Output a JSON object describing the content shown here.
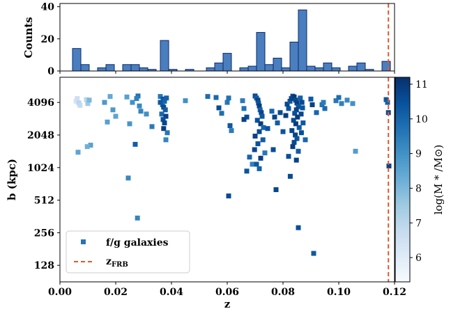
{
  "chart_data": [
    {
      "type": "bar",
      "panel": "histogram",
      "ylabel": "Counts",
      "yticks": [
        0,
        20,
        40
      ],
      "ylim": [
        0,
        42
      ],
      "xlim": [
        0,
        0.12
      ],
      "bin_width": 0.003,
      "bins": [
        {
          "x": 0.006,
          "count": 14
        },
        {
          "x": 0.009,
          "count": 4
        },
        {
          "x": 0.015,
          "count": 2
        },
        {
          "x": 0.018,
          "count": 4
        },
        {
          "x": 0.024,
          "count": 4
        },
        {
          "x": 0.027,
          "count": 4
        },
        {
          "x": 0.03,
          "count": 2
        },
        {
          "x": 0.033,
          "count": 1
        },
        {
          "x": 0.0375,
          "count": 19
        },
        {
          "x": 0.0405,
          "count": 1
        },
        {
          "x": 0.0465,
          "count": 1
        },
        {
          "x": 0.054,
          "count": 2
        },
        {
          "x": 0.057,
          "count": 5
        },
        {
          "x": 0.06,
          "count": 11
        },
        {
          "x": 0.066,
          "count": 2
        },
        {
          "x": 0.069,
          "count": 3
        },
        {
          "x": 0.072,
          "count": 24
        },
        {
          "x": 0.075,
          "count": 4
        },
        {
          "x": 0.078,
          "count": 8
        },
        {
          "x": 0.081,
          "count": 2
        },
        {
          "x": 0.084,
          "count": 18
        },
        {
          "x": 0.087,
          "count": 38
        },
        {
          "x": 0.09,
          "count": 3
        },
        {
          "x": 0.093,
          "count": 2
        },
        {
          "x": 0.096,
          "count": 5
        },
        {
          "x": 0.099,
          "count": 2
        },
        {
          "x": 0.105,
          "count": 3
        },
        {
          "x": 0.108,
          "count": 5
        },
        {
          "x": 0.111,
          "count": 1
        },
        {
          "x": 0.117,
          "count": 6
        }
      ],
      "z_frb": 0.1178,
      "colors": {
        "bar": "#4a7ebf",
        "edge": "#0b2a6b",
        "frb": "#e8562a"
      }
    },
    {
      "type": "scatter",
      "panel": "impact-parameter",
      "xlabel": "z",
      "ylabel": "b (kpc)",
      "xlim": [
        0,
        0.12
      ],
      "xticks": [
        "0.00",
        "0.02",
        "0.04",
        "0.06",
        "0.08",
        "0.10",
        "0.12"
      ],
      "xtick_values": [
        0,
        0.02,
        0.04,
        0.06,
        0.08,
        0.1,
        0.12
      ],
      "yscale": "log2",
      "ylim": [
        90,
        7000
      ],
      "yticks": [
        128,
        256,
        512,
        1024,
        2048,
        4096
      ],
      "colorbar": {
        "label": "log(M * /M⊙)",
        "ticks": [
          6,
          7,
          8,
          9,
          10,
          11
        ],
        "range": [
          5.3,
          11.2
        ]
      },
      "legend": {
        "position": "lower-left",
        "entries": [
          {
            "label": "f/g galaxies",
            "marker": "square"
          },
          {
            "label": "zFRB",
            "marker": "dashed-line"
          }
        ]
      },
      "z_frb": 0.1178,
      "points": [
        [
          0.0058,
          4200,
          6.3
        ],
        [
          0.0062,
          4450,
          6.6
        ],
        [
          0.0068,
          4050,
          7.0
        ],
        [
          0.0072,
          3850,
          6.8
        ],
        [
          0.0065,
          1420,
          8.5
        ],
        [
          0.0095,
          4350,
          7.0
        ],
        [
          0.01,
          4000,
          7.5
        ],
        [
          0.0105,
          4300,
          8.0
        ],
        [
          0.011,
          1650,
          8.6
        ],
        [
          0.0098,
          1600,
          8.2
        ],
        [
          0.018,
          4650,
          8.4
        ],
        [
          0.016,
          4100,
          8.8
        ],
        [
          0.019,
          3500,
          8.8
        ],
        [
          0.02,
          3050,
          8.5
        ],
        [
          0.017,
          2700,
          8.6
        ],
        [
          0.024,
          4600,
          8.6
        ],
        [
          0.025,
          2600,
          8.9
        ],
        [
          0.026,
          4100,
          9.0
        ],
        [
          0.0245,
          820,
          9.2
        ],
        [
          0.028,
          4700,
          9.7
        ],
        [
          0.0275,
          4450,
          9.4
        ],
        [
          0.0285,
          3800,
          9.2
        ],
        [
          0.029,
          3400,
          9.3
        ],
        [
          0.027,
          1680,
          10.2
        ],
        [
          0.0278,
          350,
          9.3
        ],
        [
          0.031,
          3200,
          9.0
        ],
        [
          0.033,
          2450,
          9.5
        ],
        [
          0.036,
          4650,
          9.6
        ],
        [
          0.037,
          4400,
          10.4
        ],
        [
          0.0375,
          4200,
          10.0
        ],
        [
          0.0368,
          3900,
          9.8
        ],
        [
          0.0372,
          3700,
          10.6
        ],
        [
          0.0378,
          3500,
          10.2
        ],
        [
          0.0365,
          3200,
          9.9
        ],
        [
          0.038,
          3050,
          10.8
        ],
        [
          0.037,
          2850,
          10.5
        ],
        [
          0.0375,
          2650,
          10.7
        ],
        [
          0.0372,
          2350,
          10.9
        ],
        [
          0.0385,
          2150,
          9.6
        ],
        [
          0.038,
          1850,
          9.3
        ],
        [
          0.036,
          4100,
          10.3
        ],
        [
          0.0382,
          4500,
          10.1
        ],
        [
          0.045,
          4250,
          9.0
        ],
        [
          0.053,
          4650,
          9.8
        ],
        [
          0.056,
          4550,
          9.9
        ],
        [
          0.057,
          3650,
          10.6
        ],
        [
          0.058,
          3250,
          9.8
        ],
        [
          0.06,
          4100,
          9.6
        ],
        [
          0.0605,
          4500,
          9.7
        ],
        [
          0.061,
          2500,
          10.3
        ],
        [
          0.0615,
          2250,
          9.5
        ],
        [
          0.0605,
          560,
          10.6
        ],
        [
          0.0655,
          4250,
          9.5
        ],
        [
          0.066,
          3600,
          9.7
        ],
        [
          0.067,
          3000,
          10.5
        ],
        [
          0.066,
          2850,
          10.8
        ],
        [
          0.068,
          1280,
          10.0
        ],
        [
          0.067,
          950,
          10.4
        ],
        [
          0.069,
          1100,
          9.4
        ],
        [
          0.07,
          4700,
          10.6
        ],
        [
          0.0705,
          4500,
          10.2
        ],
        [
          0.071,
          4300,
          10.8
        ],
        [
          0.0712,
          4050,
          10.4
        ],
        [
          0.0715,
          3800,
          10.9
        ],
        [
          0.0718,
          3500,
          10.1
        ],
        [
          0.0722,
          3300,
          10.7
        ],
        [
          0.0725,
          3050,
          10.3
        ],
        [
          0.0708,
          2800,
          10.5
        ],
        [
          0.072,
          2600,
          10.9
        ],
        [
          0.073,
          2400,
          10.0
        ],
        [
          0.0715,
          2200,
          10.6
        ],
        [
          0.07,
          2000,
          10.8
        ],
        [
          0.0728,
          1850,
          10.2
        ],
        [
          0.071,
          1700,
          10.4
        ],
        [
          0.0698,
          1500,
          10.7
        ],
        [
          0.072,
          1250,
          10.9
        ],
        [
          0.0705,
          1100,
          10.3
        ],
        [
          0.0715,
          1000,
          10.1
        ],
        [
          0.0735,
          1400,
          9.6
        ],
        [
          0.0745,
          2350,
          10.4
        ],
        [
          0.076,
          3400,
          10.0
        ],
        [
          0.077,
          3000,
          10.8
        ],
        [
          0.0765,
          1500,
          10.6
        ],
        [
          0.078,
          2650,
          10.2
        ],
        [
          0.0775,
          640,
          10.7
        ],
        [
          0.079,
          3300,
          10.6
        ],
        [
          0.08,
          2200,
          10.4
        ],
        [
          0.081,
          3100,
          10.9
        ],
        [
          0.082,
          3600,
          10.4
        ],
        [
          0.0815,
          3950,
          10.7
        ],
        [
          0.0825,
          4200,
          10.3
        ],
        [
          0.083,
          4450,
          10.8
        ],
        [
          0.0835,
          4680,
          10.5
        ],
        [
          0.084,
          4600,
          11.0
        ],
        [
          0.0845,
          4300,
          10.6
        ],
        [
          0.085,
          4050,
          10.9
        ],
        [
          0.0855,
          3750,
          10.4
        ],
        [
          0.0848,
          3500,
          10.8
        ],
        [
          0.0842,
          3250,
          10.5
        ],
        [
          0.0852,
          3000,
          11.0
        ],
        [
          0.0838,
          2800,
          10.6
        ],
        [
          0.0846,
          2600,
          10.9
        ],
        [
          0.0858,
          2400,
          10.3
        ],
        [
          0.0832,
          2250,
          10.7
        ],
        [
          0.0844,
          2050,
          10.8
        ],
        [
          0.085,
          1900,
          10.4
        ],
        [
          0.084,
          1750,
          10.6
        ],
        [
          0.0835,
          1600,
          10.9
        ],
        [
          0.0855,
          1450,
          10.2
        ],
        [
          0.082,
          1300,
          10.5
        ],
        [
          0.0848,
          1200,
          10.8
        ],
        [
          0.0862,
          4500,
          10.1
        ],
        [
          0.0868,
          4100,
          10.6
        ],
        [
          0.087,
          3650,
          10.4
        ],
        [
          0.0865,
          3200,
          10.7
        ],
        [
          0.0872,
          2650,
          10.3
        ],
        [
          0.0866,
          2150,
          10.5
        ],
        [
          0.088,
          1850,
          10.0
        ],
        [
          0.0826,
          850,
          10.6
        ],
        [
          0.0855,
          285,
          10.5
        ],
        [
          0.09,
          4400,
          10.3
        ],
        [
          0.0905,
          3900,
          10.8
        ],
        [
          0.092,
          3300,
          10.0
        ],
        [
          0.094,
          3900,
          9.7
        ],
        [
          0.095,
          3600,
          9.9
        ],
        [
          0.0945,
          4100,
          9.5
        ],
        [
          0.091,
          165,
          10.3
        ],
        [
          0.099,
          4250,
          9.6
        ],
        [
          0.1,
          4550,
          9.8
        ],
        [
          0.101,
          4000,
          9.4
        ],
        [
          0.103,
          4300,
          9.2
        ],
        [
          0.105,
          4000,
          9.0
        ],
        [
          0.106,
          1450,
          8.7
        ],
        [
          0.117,
          4350,
          10.4
        ],
        [
          0.1175,
          4100,
          10.1
        ],
        [
          0.1178,
          3300,
          10.6
        ],
        [
          0.118,
          1060,
          10.8
        ]
      ]
    }
  ]
}
